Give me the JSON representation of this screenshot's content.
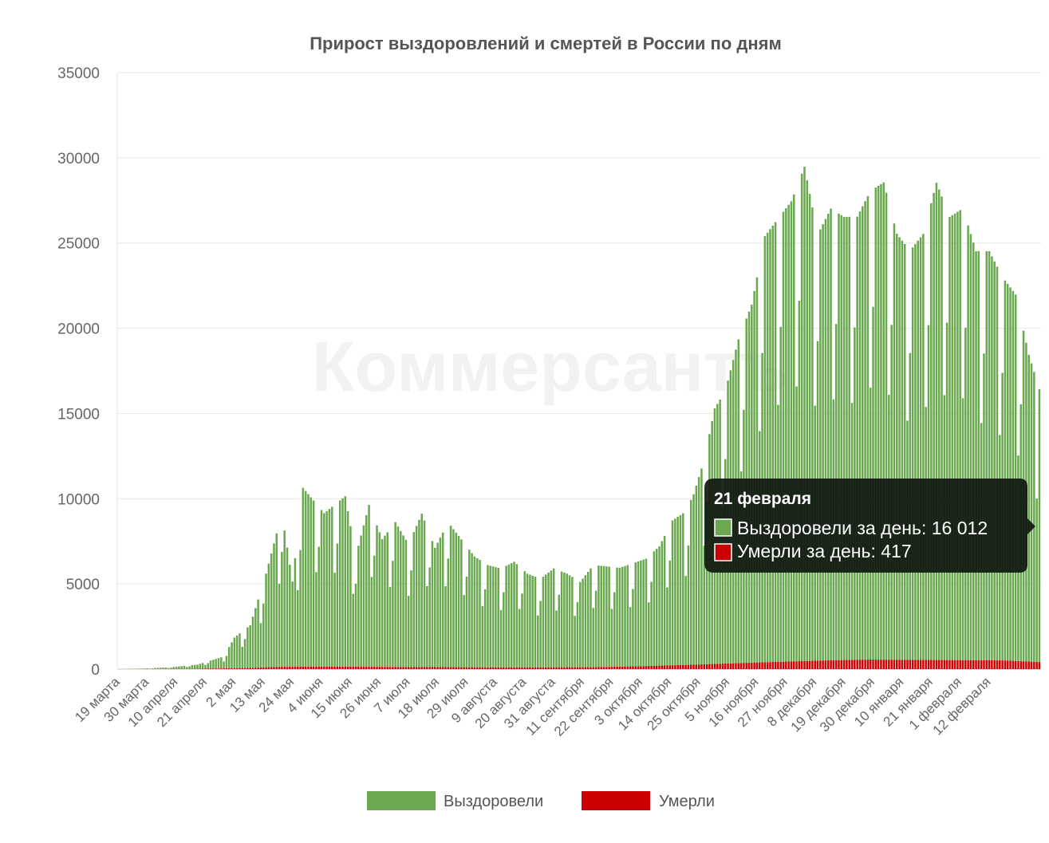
{
  "watermark": "Коммерсантъ",
  "chart_data": {
    "type": "bar",
    "stacked": true,
    "title": "Прирост выздоровлений и смертей в России по дням",
    "ylim": [
      0,
      35000
    ],
    "yticks": [
      "0",
      "5000",
      "10000",
      "15000",
      "20000",
      "25000",
      "30000",
      "35000"
    ],
    "grid": true,
    "legend_position": "bottom",
    "xtick_labels": [
      "19 марта",
      "30 марта",
      "10 апреля",
      "21 апреля",
      "2 мая",
      "13 мая",
      "24 мая",
      "4 июня",
      "15 июня",
      "26 июня",
      "7 июля",
      "18 июля",
      "29 июля",
      "9 августа",
      "20 августа",
      "31 августа",
      "11 сентября",
      "22 сентября",
      "3 октября",
      "14 октября",
      "25 октября",
      "5 ноября",
      "16 ноября",
      "27 ноября",
      "8 декабря",
      "19 декабря",
      "30 декабря",
      "10 января",
      "21 января",
      "1 февраля",
      "12 февраля"
    ],
    "series": [
      {
        "name": "Выздоровели",
        "color": "#6aa84f",
        "anchors": [
          [
            0,
            0
          ],
          [
            10,
            30
          ],
          [
            20,
            100
          ],
          [
            30,
            250
          ],
          [
            40,
            700
          ],
          [
            44,
            1800
          ],
          [
            50,
            2500
          ],
          [
            56,
            5500
          ],
          [
            62,
            9000
          ],
          [
            66,
            5000
          ],
          [
            70,
            10500
          ],
          [
            78,
            9000
          ],
          [
            86,
            10000
          ],
          [
            90,
            6500
          ],
          [
            95,
            9500
          ],
          [
            100,
            7500
          ],
          [
            105,
            8500
          ],
          [
            110,
            7200
          ],
          [
            115,
            9000
          ],
          [
            120,
            7000
          ],
          [
            125,
            8500
          ],
          [
            130,
            7500
          ],
          [
            135,
            6500
          ],
          [
            140,
            6000
          ],
          [
            145,
            5800
          ],
          [
            150,
            6200
          ],
          [
            155,
            5500
          ],
          [
            160,
            5200
          ],
          [
            165,
            5800
          ],
          [
            170,
            5500
          ],
          [
            175,
            5000
          ],
          [
            180,
            6000
          ],
          [
            190,
            5800
          ],
          [
            200,
            6300
          ],
          [
            205,
            7000
          ],
          [
            210,
            8500
          ],
          [
            215,
            9000
          ],
          [
            218,
            10000
          ],
          [
            222,
            12000
          ],
          [
            226,
            15000
          ],
          [
            230,
            16000
          ],
          [
            235,
            19000
          ],
          [
            240,
            21000
          ],
          [
            245,
            25000
          ],
          [
            250,
            26000
          ],
          [
            255,
            27000
          ],
          [
            260,
            29000
          ],
          [
            265,
            25000
          ],
          [
            270,
            26500
          ],
          [
            275,
            26000
          ],
          [
            280,
            26000
          ],
          [
            285,
            27500
          ],
          [
            290,
            28000
          ],
          [
            295,
            25000
          ],
          [
            300,
            24000
          ],
          [
            305,
            25000
          ],
          [
            310,
            28000
          ],
          [
            315,
            26000
          ],
          [
            320,
            26500
          ],
          [
            325,
            24000
          ],
          [
            330,
            24000
          ],
          [
            335,
            22500
          ],
          [
            340,
            21500
          ],
          [
            345,
            18000
          ],
          [
            349,
            16012
          ]
        ]
      },
      {
        "name": "Умерли",
        "color": "#cc0000",
        "anchors": [
          [
            0,
            0
          ],
          [
            30,
            15
          ],
          [
            50,
            70
          ],
          [
            60,
            130
          ],
          [
            80,
            150
          ],
          [
            100,
            130
          ],
          [
            130,
            110
          ],
          [
            150,
            100
          ],
          [
            180,
            110
          ],
          [
            200,
            180
          ],
          [
            220,
            270
          ],
          [
            240,
            380
          ],
          [
            255,
            450
          ],
          [
            270,
            520
          ],
          [
            285,
            560
          ],
          [
            300,
            540
          ],
          [
            320,
            530
          ],
          [
            335,
            510
          ],
          [
            349,
            417
          ]
        ]
      }
    ],
    "weekly_dip": 0.58,
    "tooltip": {
      "date": "21 февраля",
      "lines": [
        "Выздоровели за день: 16 012",
        "Умерли за день: 417"
      ],
      "values": [
        16012,
        417
      ]
    }
  }
}
